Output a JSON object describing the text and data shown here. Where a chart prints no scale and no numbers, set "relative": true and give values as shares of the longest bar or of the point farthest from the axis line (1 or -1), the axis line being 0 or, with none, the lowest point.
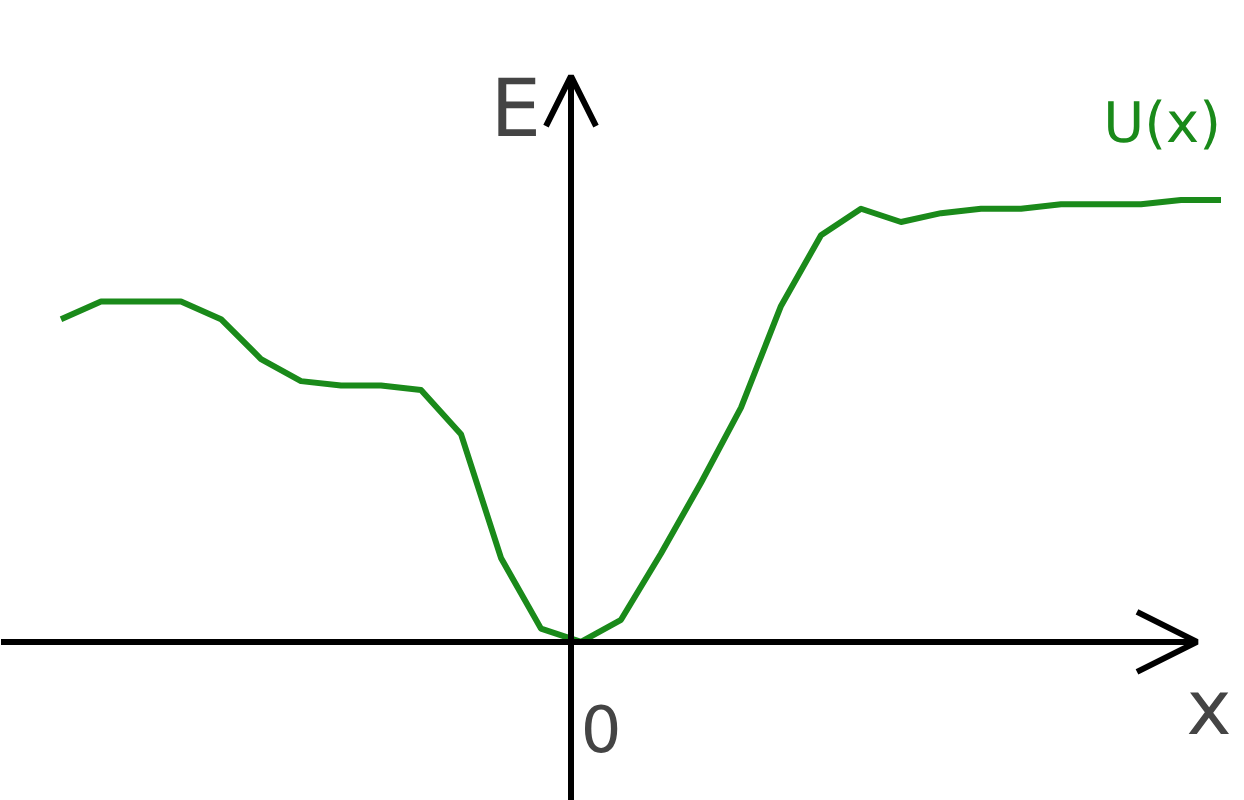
{
  "chart_data": {
    "type": "line",
    "relative": true,
    "xlabel": "x",
    "ylabel": "E",
    "annotations": [
      "0"
    ],
    "categories": [
      null,
      null,
      null,
      null,
      null,
      null,
      null,
      null,
      null,
      null,
      null,
      null,
      null,
      null,
      null,
      null,
      null,
      null,
      null,
      null,
      null,
      null,
      null,
      null,
      null,
      null,
      null,
      null,
      null,
      null
    ],
    "series": [
      {
        "name": "U(x)",
        "color": "#1a8a1a",
        "values": [
          0.73,
          0.77,
          0.77,
          0.77,
          0.73,
          0.64,
          0.59,
          0.58,
          0.58,
          0.57,
          0.47,
          0.19,
          0.03,
          0.0,
          0.05,
          0.2,
          0.36,
          0.53,
          0.76,
          0.92,
          0.98,
          0.95,
          0.97,
          0.98,
          0.98,
          0.99,
          0.99,
          0.99,
          1.0,
          1.0
        ]
      }
    ]
  }
}
